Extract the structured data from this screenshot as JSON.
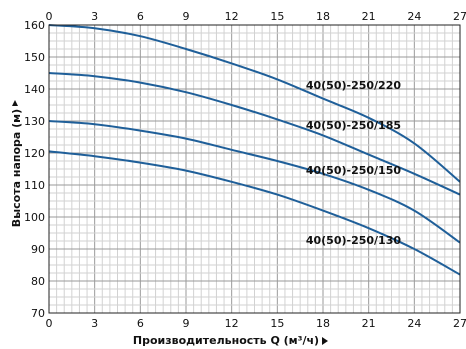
{
  "chart_data": {
    "type": "line",
    "title": "",
    "xlabel": "Производительность Q (м³/ч)",
    "ylabel": "Высота напора (м)",
    "xlim": [
      0,
      27
    ],
    "ylim": [
      70,
      160
    ],
    "x_ticks": [
      0,
      3,
      6,
      9,
      12,
      15,
      18,
      21,
      24,
      27
    ],
    "y_ticks": [
      70,
      80,
      90,
      100,
      110,
      120,
      130,
      140,
      150,
      160
    ],
    "grid": true,
    "x_ticks_top": true,
    "line_color": "#1f5f99",
    "series": [
      {
        "name": "40(50)-250/220",
        "x": [
          0,
          3,
          6,
          9,
          12,
          15,
          18,
          21,
          24,
          27
        ],
        "values": [
          160,
          159,
          156.5,
          152.5,
          148,
          143,
          137,
          131,
          123,
          111
        ]
      },
      {
        "name": "40(50)-250/185",
        "x": [
          0,
          3,
          6,
          9,
          12,
          15,
          18,
          21,
          24,
          27
        ],
        "values": [
          145,
          144,
          142,
          139,
          135,
          130.5,
          125.5,
          119.5,
          113.5,
          107
        ]
      },
      {
        "name": "40(50)-250/150",
        "x": [
          0,
          3,
          6,
          9,
          12,
          15,
          18,
          21,
          24,
          27
        ],
        "values": [
          130,
          129,
          127,
          124.5,
          121,
          117.5,
          113.5,
          108.5,
          102,
          92
        ]
      },
      {
        "name": "40(50)-250/130",
        "x": [
          0,
          3,
          6,
          9,
          12,
          15,
          18,
          21,
          24,
          27
        ],
        "values": [
          120.5,
          119,
          117,
          114.5,
          111,
          107,
          102,
          96.5,
          90,
          82
        ]
      }
    ]
  }
}
